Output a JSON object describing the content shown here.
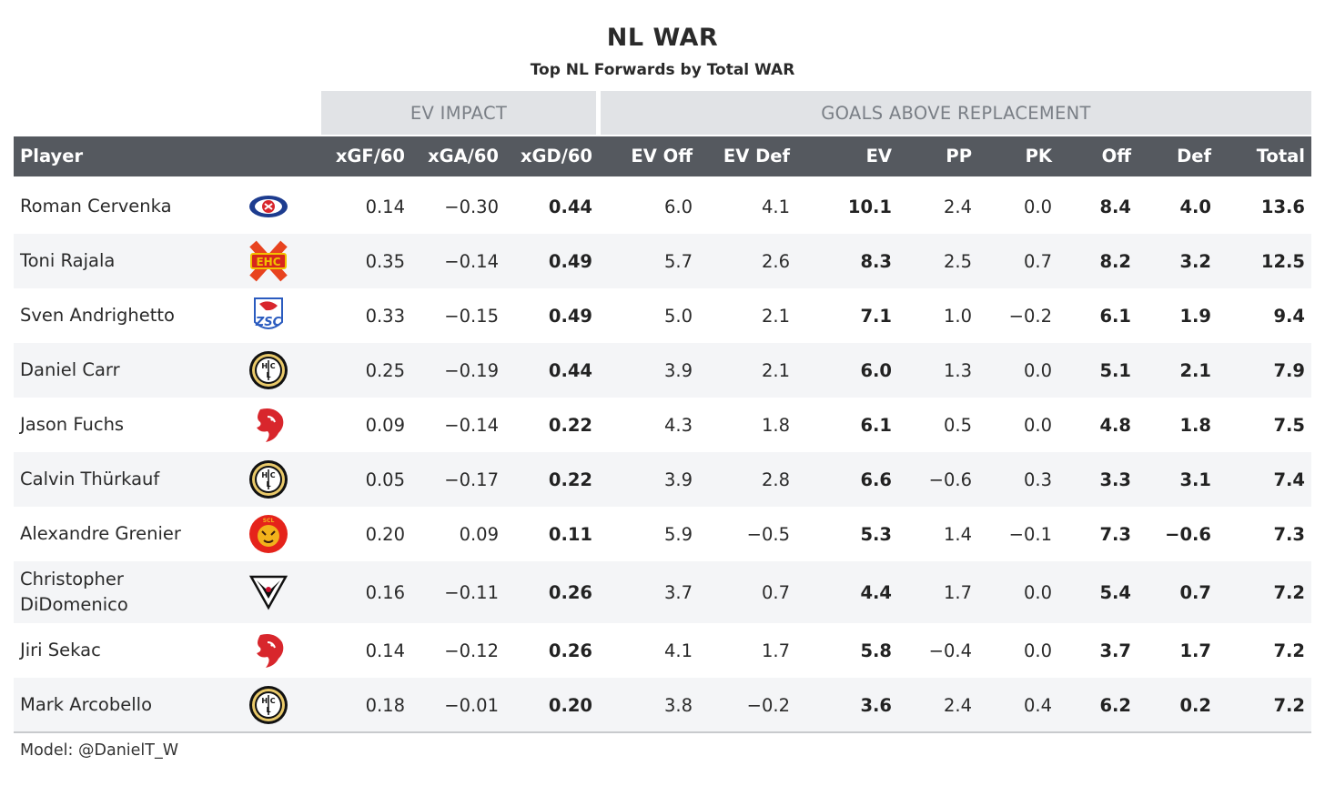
{
  "chart_data": {
    "type": "table",
    "title": "NL WAR",
    "subtitle": "Top NL Forwards by Total WAR",
    "column_groups": [
      "EV IMPACT",
      "GOALS ABOVE REPLACEMENT"
    ],
    "columns": [
      "Player",
      "xGF/60",
      "xGA/60",
      "xGD/60",
      "EV Off",
      "EV Def",
      "EV",
      "PP",
      "PK",
      "Off",
      "Def",
      "Total"
    ],
    "rows": [
      {
        "player": "Roman Cervenka",
        "team_logo": "rapperswil-logo-icon",
        "values": [
          "0.14",
          "−0.30",
          "0.44",
          "6.0",
          "4.1",
          "10.1",
          "2.4",
          "0.0",
          "8.4",
          "4.0",
          "13.6"
        ]
      },
      {
        "player": "Toni Rajala",
        "team_logo": "ehc-biel-logo-icon",
        "values": [
          "0.35",
          "−0.14",
          "0.49",
          "5.7",
          "2.6",
          "8.3",
          "2.5",
          "0.7",
          "8.2",
          "3.2",
          "12.5"
        ]
      },
      {
        "player": "Sven Andrighetto",
        "team_logo": "zsc-lions-logo-icon",
        "values": [
          "0.33",
          "−0.15",
          "0.49",
          "5.0",
          "2.1",
          "7.1",
          "1.0",
          "−0.2",
          "6.1",
          "1.9",
          "9.4"
        ]
      },
      {
        "player": "Daniel Carr",
        "team_logo": "hc-lugano-logo-icon",
        "values": [
          "0.25",
          "−0.19",
          "0.44",
          "3.9",
          "2.1",
          "6.0",
          "1.3",
          "0.0",
          "5.1",
          "2.1",
          "7.9"
        ]
      },
      {
        "player": "Jason Fuchs",
        "team_logo": "lausanne-hc-logo-icon",
        "values": [
          "0.09",
          "−0.14",
          "0.22",
          "4.3",
          "1.8",
          "6.1",
          "0.5",
          "0.0",
          "4.8",
          "1.8",
          "7.5"
        ]
      },
      {
        "player": "Calvin Thürkauf",
        "team_logo": "hc-lugano-logo-icon",
        "values": [
          "0.05",
          "−0.17",
          "0.22",
          "3.9",
          "2.8",
          "6.6",
          "−0.6",
          "0.3",
          "3.3",
          "3.1",
          "7.4"
        ]
      },
      {
        "player": "Alexandre Grenier",
        "team_logo": "scl-tigers-logo-icon",
        "values": [
          "0.20",
          "0.09",
          "0.11",
          "5.9",
          "−0.5",
          "5.3",
          "1.4",
          "−0.1",
          "7.3",
          "−0.6",
          "7.3"
        ]
      },
      {
        "player": "Christopher DiDomenico",
        "team_logo": "fribourg-gotteron-logo-icon",
        "values": [
          "0.16",
          "−0.11",
          "0.26",
          "3.7",
          "0.7",
          "4.4",
          "1.7",
          "0.0",
          "5.4",
          "0.7",
          "7.2"
        ]
      },
      {
        "player": "Jiri Sekac",
        "team_logo": "lausanne-hc-logo-icon",
        "values": [
          "0.14",
          "−0.12",
          "0.26",
          "4.1",
          "1.7",
          "5.8",
          "−0.4",
          "0.0",
          "3.7",
          "1.7",
          "7.2"
        ]
      },
      {
        "player": "Mark Arcobello",
        "team_logo": "hc-lugano-logo-icon",
        "values": [
          "0.18",
          "−0.01",
          "0.20",
          "3.8",
          "−0.2",
          "3.6",
          "2.4",
          "0.4",
          "6.2",
          "0.2",
          "7.2"
        ]
      }
    ],
    "footnote": "Model: @DanielT_W",
    "colors": {
      "header_bg": "#55595f",
      "group_bg": "#e1e3e6",
      "alt_row": "#f4f5f7"
    }
  }
}
